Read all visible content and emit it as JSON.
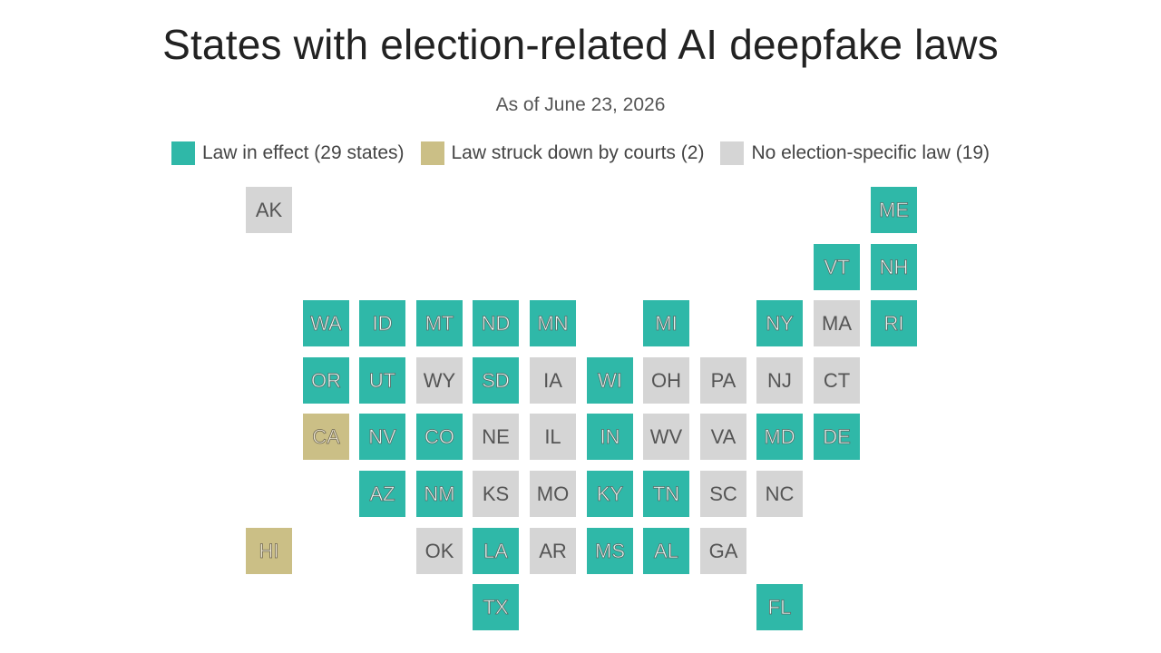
{
  "title": "States with election-related AI deepfake laws",
  "subtitle": "As of June 23, 2026",
  "colors": {
    "effect": "#2fb8a8",
    "struck": "#cbbf86",
    "none": "#d5d5d5"
  },
  "legend": [
    {
      "key": "effect",
      "label": "Law in effect (29 states)"
    },
    {
      "key": "struck",
      "label": "Law struck down by courts (2)"
    },
    {
      "key": "none",
      "label": "No election-specific law (19)"
    }
  ],
  "chart_data": {
    "type": "tile-map",
    "title": "States with election-related AI deepfake laws",
    "subtitle": "As of June 23, 2026",
    "categories": [
      "effect",
      "struck",
      "none"
    ],
    "states": [
      {
        "abbr": "AK",
        "status": "none",
        "row": 0,
        "col": 0
      },
      {
        "abbr": "ME",
        "status": "effect",
        "row": 0,
        "col": 11
      },
      {
        "abbr": "VT",
        "status": "effect",
        "row": 1,
        "col": 10
      },
      {
        "abbr": "NH",
        "status": "effect",
        "row": 1,
        "col": 11
      },
      {
        "abbr": "WA",
        "status": "effect",
        "row": 2,
        "col": 1
      },
      {
        "abbr": "ID",
        "status": "effect",
        "row": 2,
        "col": 2
      },
      {
        "abbr": "MT",
        "status": "effect",
        "row": 2,
        "col": 3
      },
      {
        "abbr": "ND",
        "status": "effect",
        "row": 2,
        "col": 4
      },
      {
        "abbr": "MN",
        "status": "effect",
        "row": 2,
        "col": 5
      },
      {
        "abbr": "MI",
        "status": "effect",
        "row": 2,
        "col": 7
      },
      {
        "abbr": "NY",
        "status": "effect",
        "row": 2,
        "col": 9
      },
      {
        "abbr": "MA",
        "status": "none",
        "row": 2,
        "col": 10
      },
      {
        "abbr": "RI",
        "status": "effect",
        "row": 2,
        "col": 11
      },
      {
        "abbr": "OR",
        "status": "effect",
        "row": 3,
        "col": 1
      },
      {
        "abbr": "UT",
        "status": "effect",
        "row": 3,
        "col": 2
      },
      {
        "abbr": "WY",
        "status": "none",
        "row": 3,
        "col": 3
      },
      {
        "abbr": "SD",
        "status": "effect",
        "row": 3,
        "col": 4
      },
      {
        "abbr": "IA",
        "status": "none",
        "row": 3,
        "col": 5
      },
      {
        "abbr": "WI",
        "status": "effect",
        "row": 3,
        "col": 6
      },
      {
        "abbr": "OH",
        "status": "none",
        "row": 3,
        "col": 7
      },
      {
        "abbr": "PA",
        "status": "none",
        "row": 3,
        "col": 8
      },
      {
        "abbr": "NJ",
        "status": "none",
        "row": 3,
        "col": 9
      },
      {
        "abbr": "CT",
        "status": "none",
        "row": 3,
        "col": 10
      },
      {
        "abbr": "CA",
        "status": "struck",
        "row": 4,
        "col": 1
      },
      {
        "abbr": "NV",
        "status": "effect",
        "row": 4,
        "col": 2
      },
      {
        "abbr": "CO",
        "status": "effect",
        "row": 4,
        "col": 3
      },
      {
        "abbr": "NE",
        "status": "none",
        "row": 4,
        "col": 4
      },
      {
        "abbr": "IL",
        "status": "none",
        "row": 4,
        "col": 5
      },
      {
        "abbr": "IN",
        "status": "effect",
        "row": 4,
        "col": 6
      },
      {
        "abbr": "WV",
        "status": "none",
        "row": 4,
        "col": 7
      },
      {
        "abbr": "VA",
        "status": "none",
        "row": 4,
        "col": 8
      },
      {
        "abbr": "MD",
        "status": "effect",
        "row": 4,
        "col": 9
      },
      {
        "abbr": "DE",
        "status": "effect",
        "row": 4,
        "col": 10
      },
      {
        "abbr": "AZ",
        "status": "effect",
        "row": 5,
        "col": 2
      },
      {
        "abbr": "NM",
        "status": "effect",
        "row": 5,
        "col": 3
      },
      {
        "abbr": "KS",
        "status": "none",
        "row": 5,
        "col": 4
      },
      {
        "abbr": "MO",
        "status": "none",
        "row": 5,
        "col": 5
      },
      {
        "abbr": "KY",
        "status": "effect",
        "row": 5,
        "col": 6
      },
      {
        "abbr": "TN",
        "status": "effect",
        "row": 5,
        "col": 7
      },
      {
        "abbr": "SC",
        "status": "none",
        "row": 5,
        "col": 8
      },
      {
        "abbr": "NC",
        "status": "none",
        "row": 5,
        "col": 9
      },
      {
        "abbr": "HI",
        "status": "struck",
        "row": 6,
        "col": 0
      },
      {
        "abbr": "OK",
        "status": "none",
        "row": 6,
        "col": 3
      },
      {
        "abbr": "LA",
        "status": "effect",
        "row": 6,
        "col": 4
      },
      {
        "abbr": "AR",
        "status": "none",
        "row": 6,
        "col": 5
      },
      {
        "abbr": "MS",
        "status": "effect",
        "row": 6,
        "col": 6
      },
      {
        "abbr": "AL",
        "status": "effect",
        "row": 6,
        "col": 7
      },
      {
        "abbr": "GA",
        "status": "none",
        "row": 6,
        "col": 8
      },
      {
        "abbr": "TX",
        "status": "effect",
        "row": 7,
        "col": 4
      },
      {
        "abbr": "FL",
        "status": "effect",
        "row": 7,
        "col": 9
      }
    ]
  }
}
